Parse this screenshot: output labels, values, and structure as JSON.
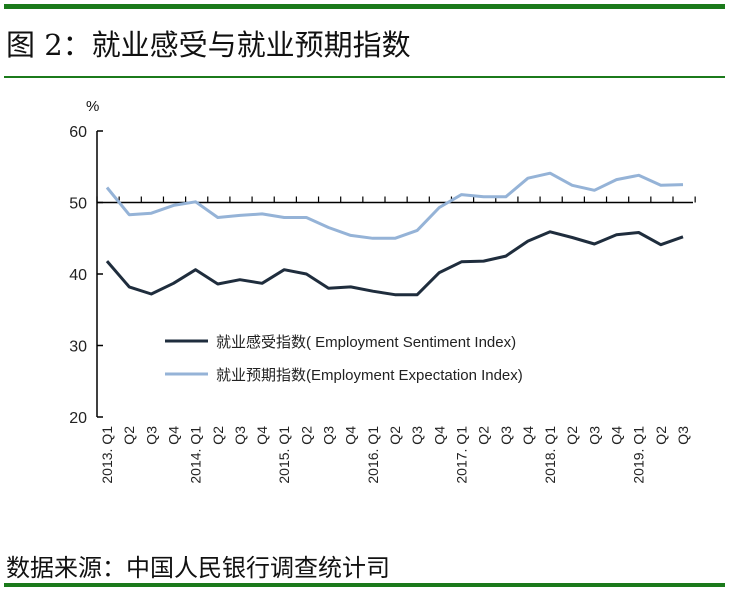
{
  "title": "图 2：就业感受与就业预期指数",
  "source": "数据来源：中国人民银行调查统计司",
  "colors": {
    "rule": "#1b7a1b",
    "sentiment": "#1f2d3d",
    "expectation": "#95b3d7"
  },
  "chart_data": {
    "type": "line",
    "title": "",
    "xlabel": "",
    "ylabel": "%",
    "ylim": [
      20,
      60
    ],
    "yticks": [
      "20",
      "30",
      "40",
      "50",
      "60"
    ],
    "x_axis_crosses_at": 50,
    "grid": false,
    "legend_placement": "bottom-center",
    "categories": [
      "2013. Q1",
      "Q2",
      "Q3",
      "Q4",
      "2014. Q1",
      "Q2",
      "Q3",
      "Q4",
      "2015. Q1",
      "Q2",
      "Q3",
      "Q4",
      "2016. Q1",
      "Q2",
      "Q3",
      "Q4",
      "2017. Q1",
      "Q2",
      "Q3",
      "Q4",
      "2018. Q1",
      "Q2",
      "Q3",
      "Q4",
      "2019. Q1",
      "Q2",
      "Q3"
    ],
    "series": [
      {
        "name": "就业感受指数( Employment Sentiment Index)",
        "color": "#1f2d3d",
        "values": [
          41.8,
          38.2,
          37.2,
          38.7,
          40.6,
          38.6,
          39.2,
          38.7,
          40.6,
          40.0,
          38.0,
          38.2,
          37.6,
          37.1,
          37.1,
          40.2,
          41.7,
          41.8,
          42.5,
          44.6,
          45.9,
          45.1,
          44.2,
          45.5,
          45.8,
          44.1,
          45.2
        ]
      },
      {
        "name": "就业预期指数(Employment Expectation Index)",
        "color": "#95b3d7",
        "values": [
          52.1,
          48.3,
          48.5,
          49.6,
          50.1,
          47.9,
          48.2,
          48.4,
          47.9,
          47.9,
          46.5,
          45.4,
          45.0,
          45.0,
          46.1,
          49.3,
          51.1,
          50.8,
          50.8,
          53.4,
          54.1,
          52.4,
          51.7,
          53.2,
          53.8,
          52.4,
          52.5
        ]
      }
    ]
  }
}
